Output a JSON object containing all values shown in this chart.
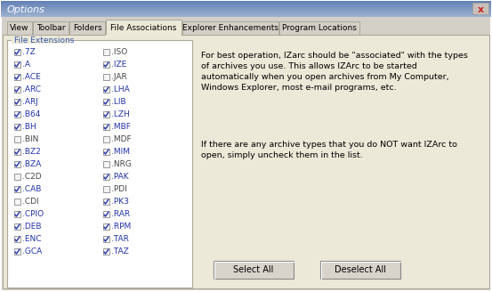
{
  "title": "Options",
  "tabs": [
    "View",
    "Toolbar",
    "Folders",
    "File Associations",
    "Explorer Enhancements",
    "Program Locations"
  ],
  "active_tab_idx": 3,
  "group_label": "File Extensions",
  "left_col": [
    [
      true,
      ".7Z"
    ],
    [
      true,
      ".A"
    ],
    [
      true,
      ".ACE"
    ],
    [
      true,
      ".ARC"
    ],
    [
      true,
      ".ARJ"
    ],
    [
      true,
      ".B64"
    ],
    [
      true,
      ".BH"
    ],
    [
      false,
      ".BIN"
    ],
    [
      true,
      ".BZ2"
    ],
    [
      true,
      ".BZA"
    ],
    [
      false,
      ".C2D"
    ],
    [
      true,
      ".CAB"
    ],
    [
      false,
      ".CDI"
    ],
    [
      true,
      ".CPIO"
    ],
    [
      true,
      ".DEB"
    ],
    [
      true,
      ".ENC"
    ],
    [
      true,
      ".GCA"
    ]
  ],
  "right_col": [
    [
      false,
      ".ISO"
    ],
    [
      true,
      ".IZE"
    ],
    [
      false,
      ".JAR"
    ],
    [
      true,
      ".LHA"
    ],
    [
      true,
      ".LIB"
    ],
    [
      true,
      ".LZH"
    ],
    [
      true,
      ".MBF"
    ],
    [
      false,
      ".MDF"
    ],
    [
      true,
      ".MIM"
    ],
    [
      false,
      ".NRG"
    ],
    [
      true,
      ".PAK"
    ],
    [
      false,
      ".PDI"
    ],
    [
      true,
      ".PK3"
    ],
    [
      true,
      ".RAR"
    ],
    [
      true,
      ".RPM"
    ],
    [
      true,
      ".TAR"
    ],
    [
      true,
      ".TAZ"
    ]
  ],
  "description1": "For best operation, IZarc should be \"associated\" with the types\nof archives you use. This allows IZArc to be started\nautomatically when you open archives from My Computer,\nWindows Explorer, most e-mail programs, etc.",
  "description2": "If there are any archive types that you do NOT want IZArc to\nopen, simply uncheck them in the list.",
  "btn1": "Select All",
  "btn2": "Deselect All",
  "bg_color": "#ECE9D8",
  "dialog_bg": "#D4D0C8",
  "title_fg": "#FFFFFF",
  "tab_active_bg": "#ECE9D8",
  "tab_inactive_bg": "#D4D0C8",
  "group_fg": "#3355AA",
  "text_fg": "#000000",
  "check_color": "#2233AA",
  "font_size": 6.5,
  "title_font_size": 8,
  "tab_font_size": 6.5,
  "desc_font_size": 6.8,
  "btn_font_size": 7.0
}
